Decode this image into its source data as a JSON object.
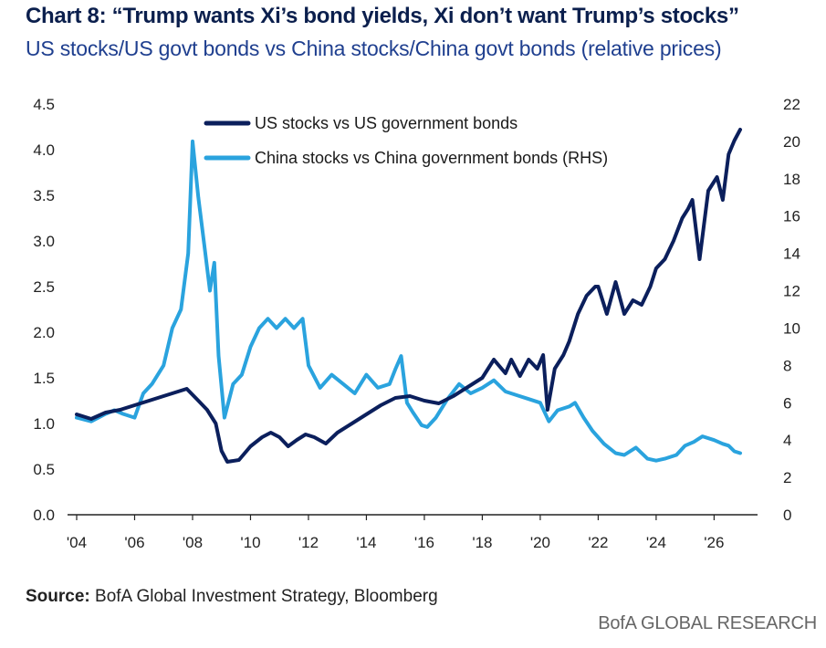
{
  "header": {
    "title": "Chart 8: “Trump wants Xi’s bond yields, Xi don’t want Trump’s stocks”",
    "subtitle": "US stocks/US govt bonds vs China stocks/China govt bonds (relative prices)"
  },
  "footer": {
    "source_label": "Source:",
    "source_text": "BofA Global Investment Strategy, Bloomberg",
    "brand": "BofA GLOBAL RESEARCH"
  },
  "colors": {
    "us_series": "#0b1f5c",
    "china_series": "#2aa3de"
  },
  "chart_data": {
    "type": "line",
    "title": "Chart 8: “Trump wants Xi’s bond yields, Xi don’t want Trump’s stocks”",
    "x_ticks": [
      "'04",
      "'06",
      "'08",
      "'10",
      "'12",
      "'14",
      "'16",
      "'18",
      "'20",
      "'22",
      "'24",
      "'26"
    ],
    "x_tick_years": [
      2004,
      2006,
      2008,
      2010,
      2012,
      2014,
      2016,
      2018,
      2020,
      2022,
      2024,
      2026
    ],
    "xlim": [
      2004,
      2027.5
    ],
    "y_left": {
      "ticks": [
        "0.0",
        "0.5",
        "1.0",
        "1.5",
        "2.0",
        "2.5",
        "3.0",
        "3.5",
        "4.0",
        "4.5"
      ],
      "lim": [
        0,
        4.5
      ]
    },
    "y_right": {
      "ticks": [
        "0",
        "2",
        "4",
        "6",
        "8",
        "10",
        "12",
        "14",
        "16",
        "18",
        "20",
        "22"
      ],
      "lim": [
        0,
        22
      ]
    },
    "legend_position": "top-center",
    "grid": false,
    "series": [
      {
        "name": "US stocks vs US government bonds",
        "axis": "left",
        "x": [
          2004.0,
          2004.5,
          2005.0,
          2005.5,
          2006.0,
          2006.5,
          2007.0,
          2007.5,
          2007.8,
          2008.2,
          2008.5,
          2008.8,
          2009.0,
          2009.2,
          2009.6,
          2010.0,
          2010.4,
          2010.7,
          2011.0,
          2011.3,
          2011.6,
          2011.9,
          2012.2,
          2012.6,
          2013.0,
          2013.5,
          2014.0,
          2014.5,
          2015.0,
          2015.5,
          2016.0,
          2016.5,
          2017.0,
          2017.5,
          2018.0,
          2018.4,
          2018.8,
          2019.0,
          2019.3,
          2019.6,
          2019.9,
          2020.1,
          2020.25,
          2020.5,
          2020.8,
          2021.0,
          2021.3,
          2021.6,
          2021.9,
          2022.0,
          2022.3,
          2022.6,
          2022.9,
          2023.2,
          2023.5,
          2023.8,
          2024.0,
          2024.3,
          2024.6,
          2024.9,
          2025.1,
          2025.25,
          2025.5,
          2025.8,
          2026.0,
          2026.1,
          2026.3,
          2026.5,
          2026.7,
          2026.9
        ],
        "values": [
          1.1,
          1.05,
          1.12,
          1.15,
          1.2,
          1.25,
          1.3,
          1.35,
          1.38,
          1.25,
          1.15,
          1.0,
          0.7,
          0.58,
          0.6,
          0.75,
          0.85,
          0.9,
          0.85,
          0.75,
          0.82,
          0.88,
          0.85,
          0.78,
          0.9,
          1.0,
          1.1,
          1.2,
          1.28,
          1.3,
          1.25,
          1.22,
          1.3,
          1.4,
          1.5,
          1.7,
          1.55,
          1.7,
          1.52,
          1.7,
          1.6,
          1.75,
          1.15,
          1.6,
          1.75,
          1.9,
          2.2,
          2.4,
          2.5,
          2.5,
          2.2,
          2.55,
          2.2,
          2.35,
          2.3,
          2.5,
          2.7,
          2.8,
          3.0,
          3.25,
          3.35,
          3.45,
          2.8,
          3.55,
          3.65,
          3.7,
          3.45,
          3.95,
          4.1,
          4.22
        ]
      },
      {
        "name": "China stocks vs China government bonds (RHS)",
        "axis": "right",
        "x": [
          2004.0,
          2004.5,
          2005.0,
          2005.3,
          2005.6,
          2006.0,
          2006.3,
          2006.6,
          2007.0,
          2007.3,
          2007.6,
          2007.85,
          2008.0,
          2008.2,
          2008.4,
          2008.6,
          2008.75,
          2008.9,
          2009.1,
          2009.4,
          2009.7,
          2010.0,
          2010.3,
          2010.6,
          2010.9,
          2011.2,
          2011.5,
          2011.8,
          2012.0,
          2012.4,
          2012.8,
          2013.2,
          2013.6,
          2014.0,
          2014.4,
          2014.8,
          2015.0,
          2015.2,
          2015.4,
          2015.6,
          2015.9,
          2016.1,
          2016.4,
          2016.8,
          2017.2,
          2017.6,
          2018.0,
          2018.4,
          2018.8,
          2019.2,
          2019.6,
          2020.0,
          2020.3,
          2020.6,
          2021.0,
          2021.2,
          2021.5,
          2021.8,
          2022.2,
          2022.6,
          2022.9,
          2023.3,
          2023.7,
          2024.0,
          2024.3,
          2024.7,
          2025.0,
          2025.3,
          2025.6,
          2026.0,
          2026.3,
          2026.5,
          2026.7,
          2026.9
        ],
        "values": [
          5.2,
          5.0,
          5.4,
          5.6,
          5.4,
          5.2,
          6.5,
          7.0,
          8.0,
          10.0,
          11.0,
          14.0,
          20.0,
          17.0,
          14.5,
          12.0,
          13.5,
          8.5,
          5.2,
          7.0,
          7.5,
          9.0,
          10.0,
          10.5,
          10.0,
          10.5,
          10.0,
          10.5,
          8.0,
          6.8,
          7.5,
          7.0,
          6.5,
          7.5,
          6.8,
          7.0,
          7.8,
          8.5,
          6.0,
          5.5,
          4.8,
          4.7,
          5.2,
          6.2,
          7.0,
          6.5,
          6.8,
          7.2,
          6.6,
          6.4,
          6.2,
          6.0,
          5.0,
          5.6,
          5.8,
          6.0,
          5.2,
          4.5,
          3.8,
          3.3,
          3.2,
          3.6,
          3.0,
          2.9,
          3.0,
          3.2,
          3.7,
          3.9,
          4.2,
          4.0,
          3.8,
          3.7,
          3.4,
          3.3
        ]
      }
    ]
  }
}
